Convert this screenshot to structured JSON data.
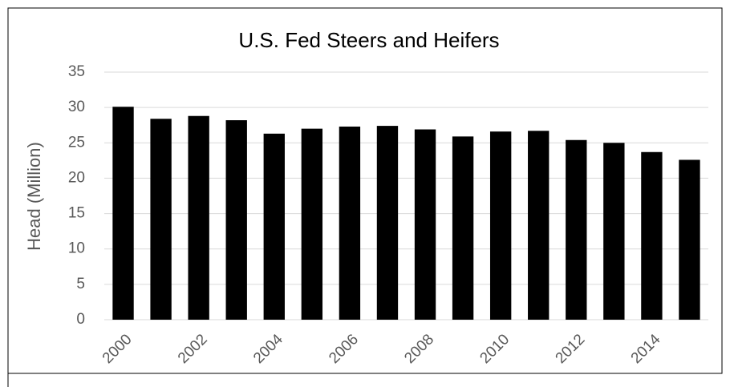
{
  "chart_data": {
    "type": "bar",
    "title": "U.S. Fed Steers and Heifers",
    "y_label": "Head (Million)",
    "categories": [
      "2000",
      null,
      "2002",
      null,
      "2004",
      null,
      "2006",
      null,
      "2008",
      null,
      "2010",
      null,
      "2012",
      null,
      "2014",
      null
    ],
    "values": [
      30.1,
      28.4,
      28.8,
      28.2,
      26.3,
      27.0,
      27.3,
      27.4,
      26.9,
      25.9,
      26.6,
      26.7,
      25.4,
      25.0,
      23.7,
      22.6
    ],
    "color": "#000000",
    "ylim": [
      0,
      35
    ],
    "yticks": [
      0,
      5,
      10,
      15,
      20,
      25,
      30,
      35
    ],
    "grid": true
  }
}
